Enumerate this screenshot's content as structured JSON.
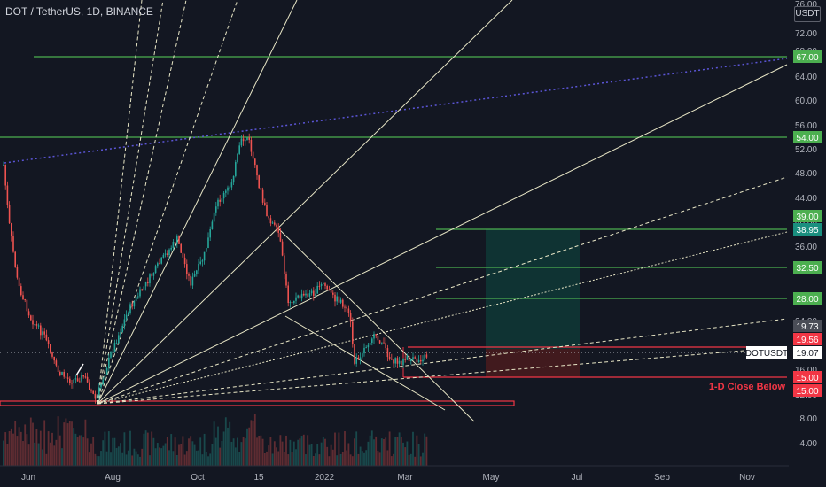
{
  "header": {
    "title": "DOT / TetherUS, 1D, BINANCE",
    "currency_badge": "USDT"
  },
  "price_axis": {
    "ticks": [
      "76.00",
      "72.00",
      "68.00",
      "64.00",
      "60.00",
      "56.00",
      "52.00",
      "48.00",
      "44.00",
      "40.00",
      "36.00",
      "24.00",
      "16.00",
      "12.00",
      "8.00",
      "4.00"
    ]
  },
  "time_axis": {
    "ticks": [
      "Jun",
      "Aug",
      "Oct",
      "15",
      "2022",
      "Mar",
      "May",
      "Jul",
      "Sep",
      "Nov"
    ]
  },
  "price_tags": {
    "t67": "67.00",
    "t54": "54.00",
    "t39": "39.00",
    "t3895": "38.95",
    "t325": "32.50",
    "t28": "28.00",
    "t1973": "19.73",
    "t1956": "19.56",
    "symbol": "DOTUSDT",
    "t1907": "19.07",
    "t15a": "15.00",
    "t15b": "15.00"
  },
  "annotation": {
    "close_below": "1-D Close Below"
  },
  "colors": {
    "background": "#131722",
    "green_level": "#4caf50",
    "red_level": "#f23645",
    "fan_line": "#e8e6c6",
    "blue_dotted": "#5b55d6",
    "target_zone": "#0f3d3a",
    "stop_zone": "#4a1b1d",
    "up_candle": "#26a69a",
    "down_candle": "#ef5350"
  }
}
